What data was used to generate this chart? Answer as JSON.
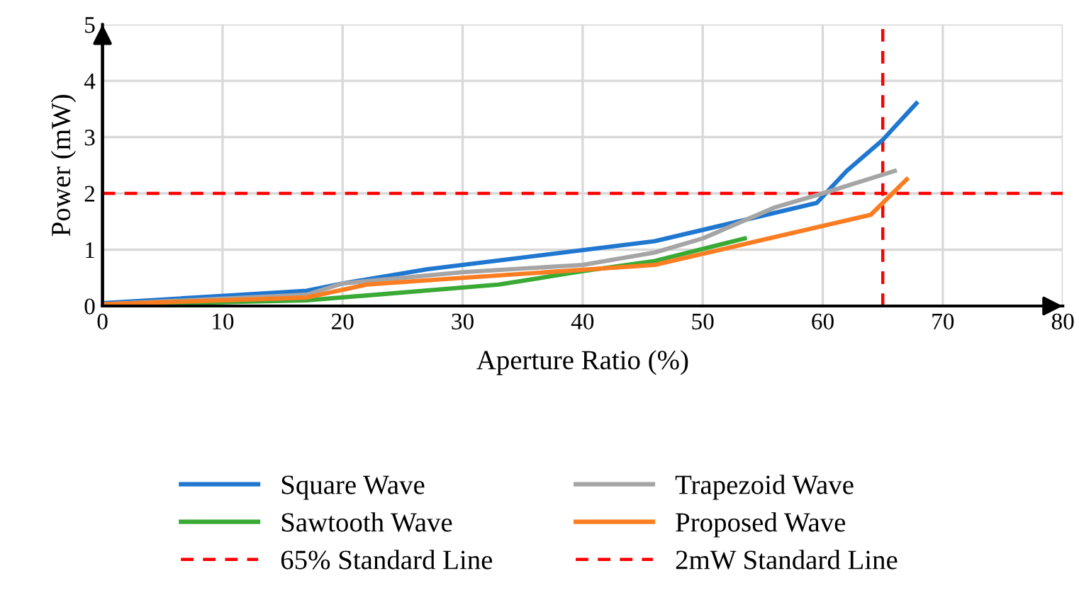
{
  "chart_data": {
    "type": "line",
    "xlabel": "Aperture Ratio (%)",
    "ylabel": "Power (mW)",
    "xlim": [
      0,
      80
    ],
    "xticks": [
      0,
      10,
      20,
      30,
      40,
      50,
      60,
      70,
      80
    ],
    "ylim": [
      0,
      5
    ],
    "yticks": [
      0,
      1,
      2,
      3,
      4,
      5
    ],
    "grid": true,
    "legend": "bottom",
    "marker": "none",
    "line_style": "solid",
    "series": [
      {
        "name": "Square Wave",
        "color": "#1f77d0",
        "x": [
          0,
          17,
          20,
          27,
          46,
          59.5,
          62,
          65,
          67.8
        ],
        "values": [
          0.05,
          0.27,
          0.4,
          0.65,
          1.15,
          1.83,
          2.4,
          2.95,
          3.6
        ]
      },
      {
        "name": "Trapezoid Wave",
        "color": "#a5a5a5",
        "x": [
          0,
          17,
          20,
          30,
          40,
          46,
          50,
          56,
          60,
          66
        ],
        "values": [
          0.03,
          0.2,
          0.4,
          0.6,
          0.73,
          0.95,
          1.2,
          1.75,
          2.0,
          2.4
        ]
      },
      {
        "name": "Sawtooth Wave",
        "color": "#3aaa35",
        "x": [
          0,
          17,
          33,
          40,
          46,
          53.5
        ],
        "values": [
          0.02,
          0.1,
          0.38,
          0.62,
          0.8,
          1.2
        ]
      },
      {
        "name": "Proposed Wave",
        "color": "#fb7d22",
        "x": [
          0,
          17,
          22,
          30,
          46,
          53.5,
          64,
          67
        ],
        "values": [
          0.03,
          0.15,
          0.38,
          0.5,
          0.73,
          1.1,
          1.62,
          2.25
        ]
      }
    ],
    "ref_lines": [
      {
        "axis": "x",
        "value": 65,
        "label": "65% Standard Line",
        "color": "#ff0000",
        "line_style": "dashed"
      },
      {
        "axis": "y",
        "value": 2,
        "label": "2mW Standard Line",
        "color": "#ff0000",
        "line_style": "dashed"
      }
    ]
  }
}
